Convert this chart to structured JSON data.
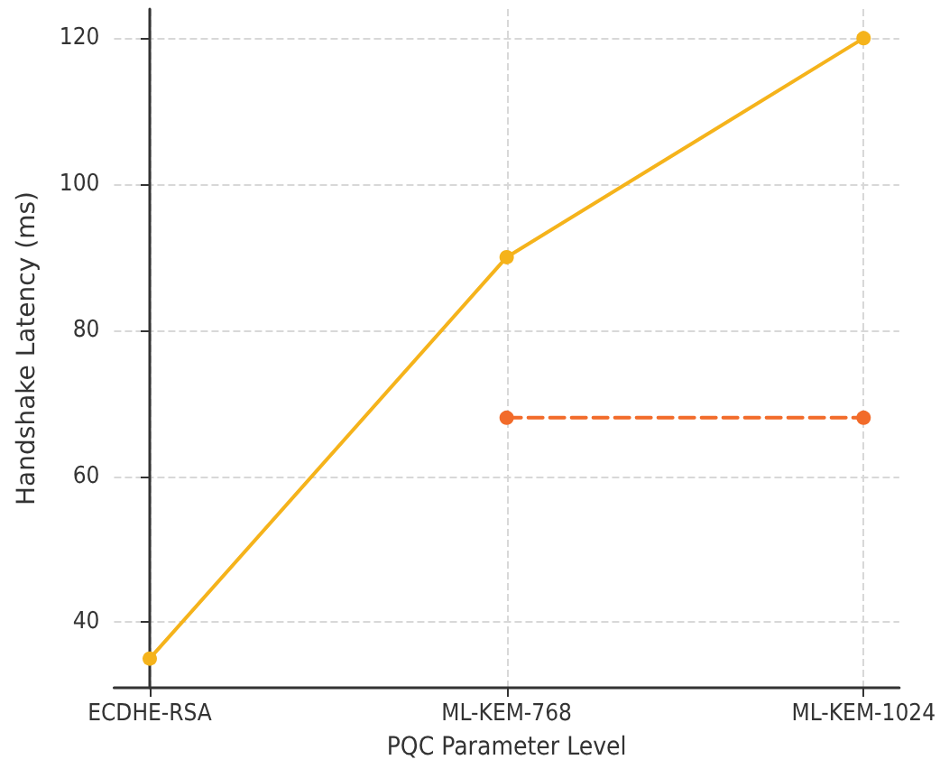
{
  "chart_data": {
    "type": "line",
    "xlabel": "PQC Parameter Level",
    "ylabel": "Handshake Latency (ms)",
    "categories": [
      "ECDHE-RSA",
      "ML-KEM-768",
      "ML-KEM-1024"
    ],
    "series": [
      {
        "color": "#f5b31b",
        "values": [
          35,
          90,
          120
        ]
      },
      {
        "color": "#f26b2a",
        "values": [
          null,
          68,
          68
        ],
        "line_style": "dashed"
      }
    ],
    "ylim": [
      31,
      124
    ],
    "yticks": [
      40,
      60,
      80,
      100,
      120
    ],
    "grid": true,
    "marker": "circle",
    "line_style": "solid"
  }
}
